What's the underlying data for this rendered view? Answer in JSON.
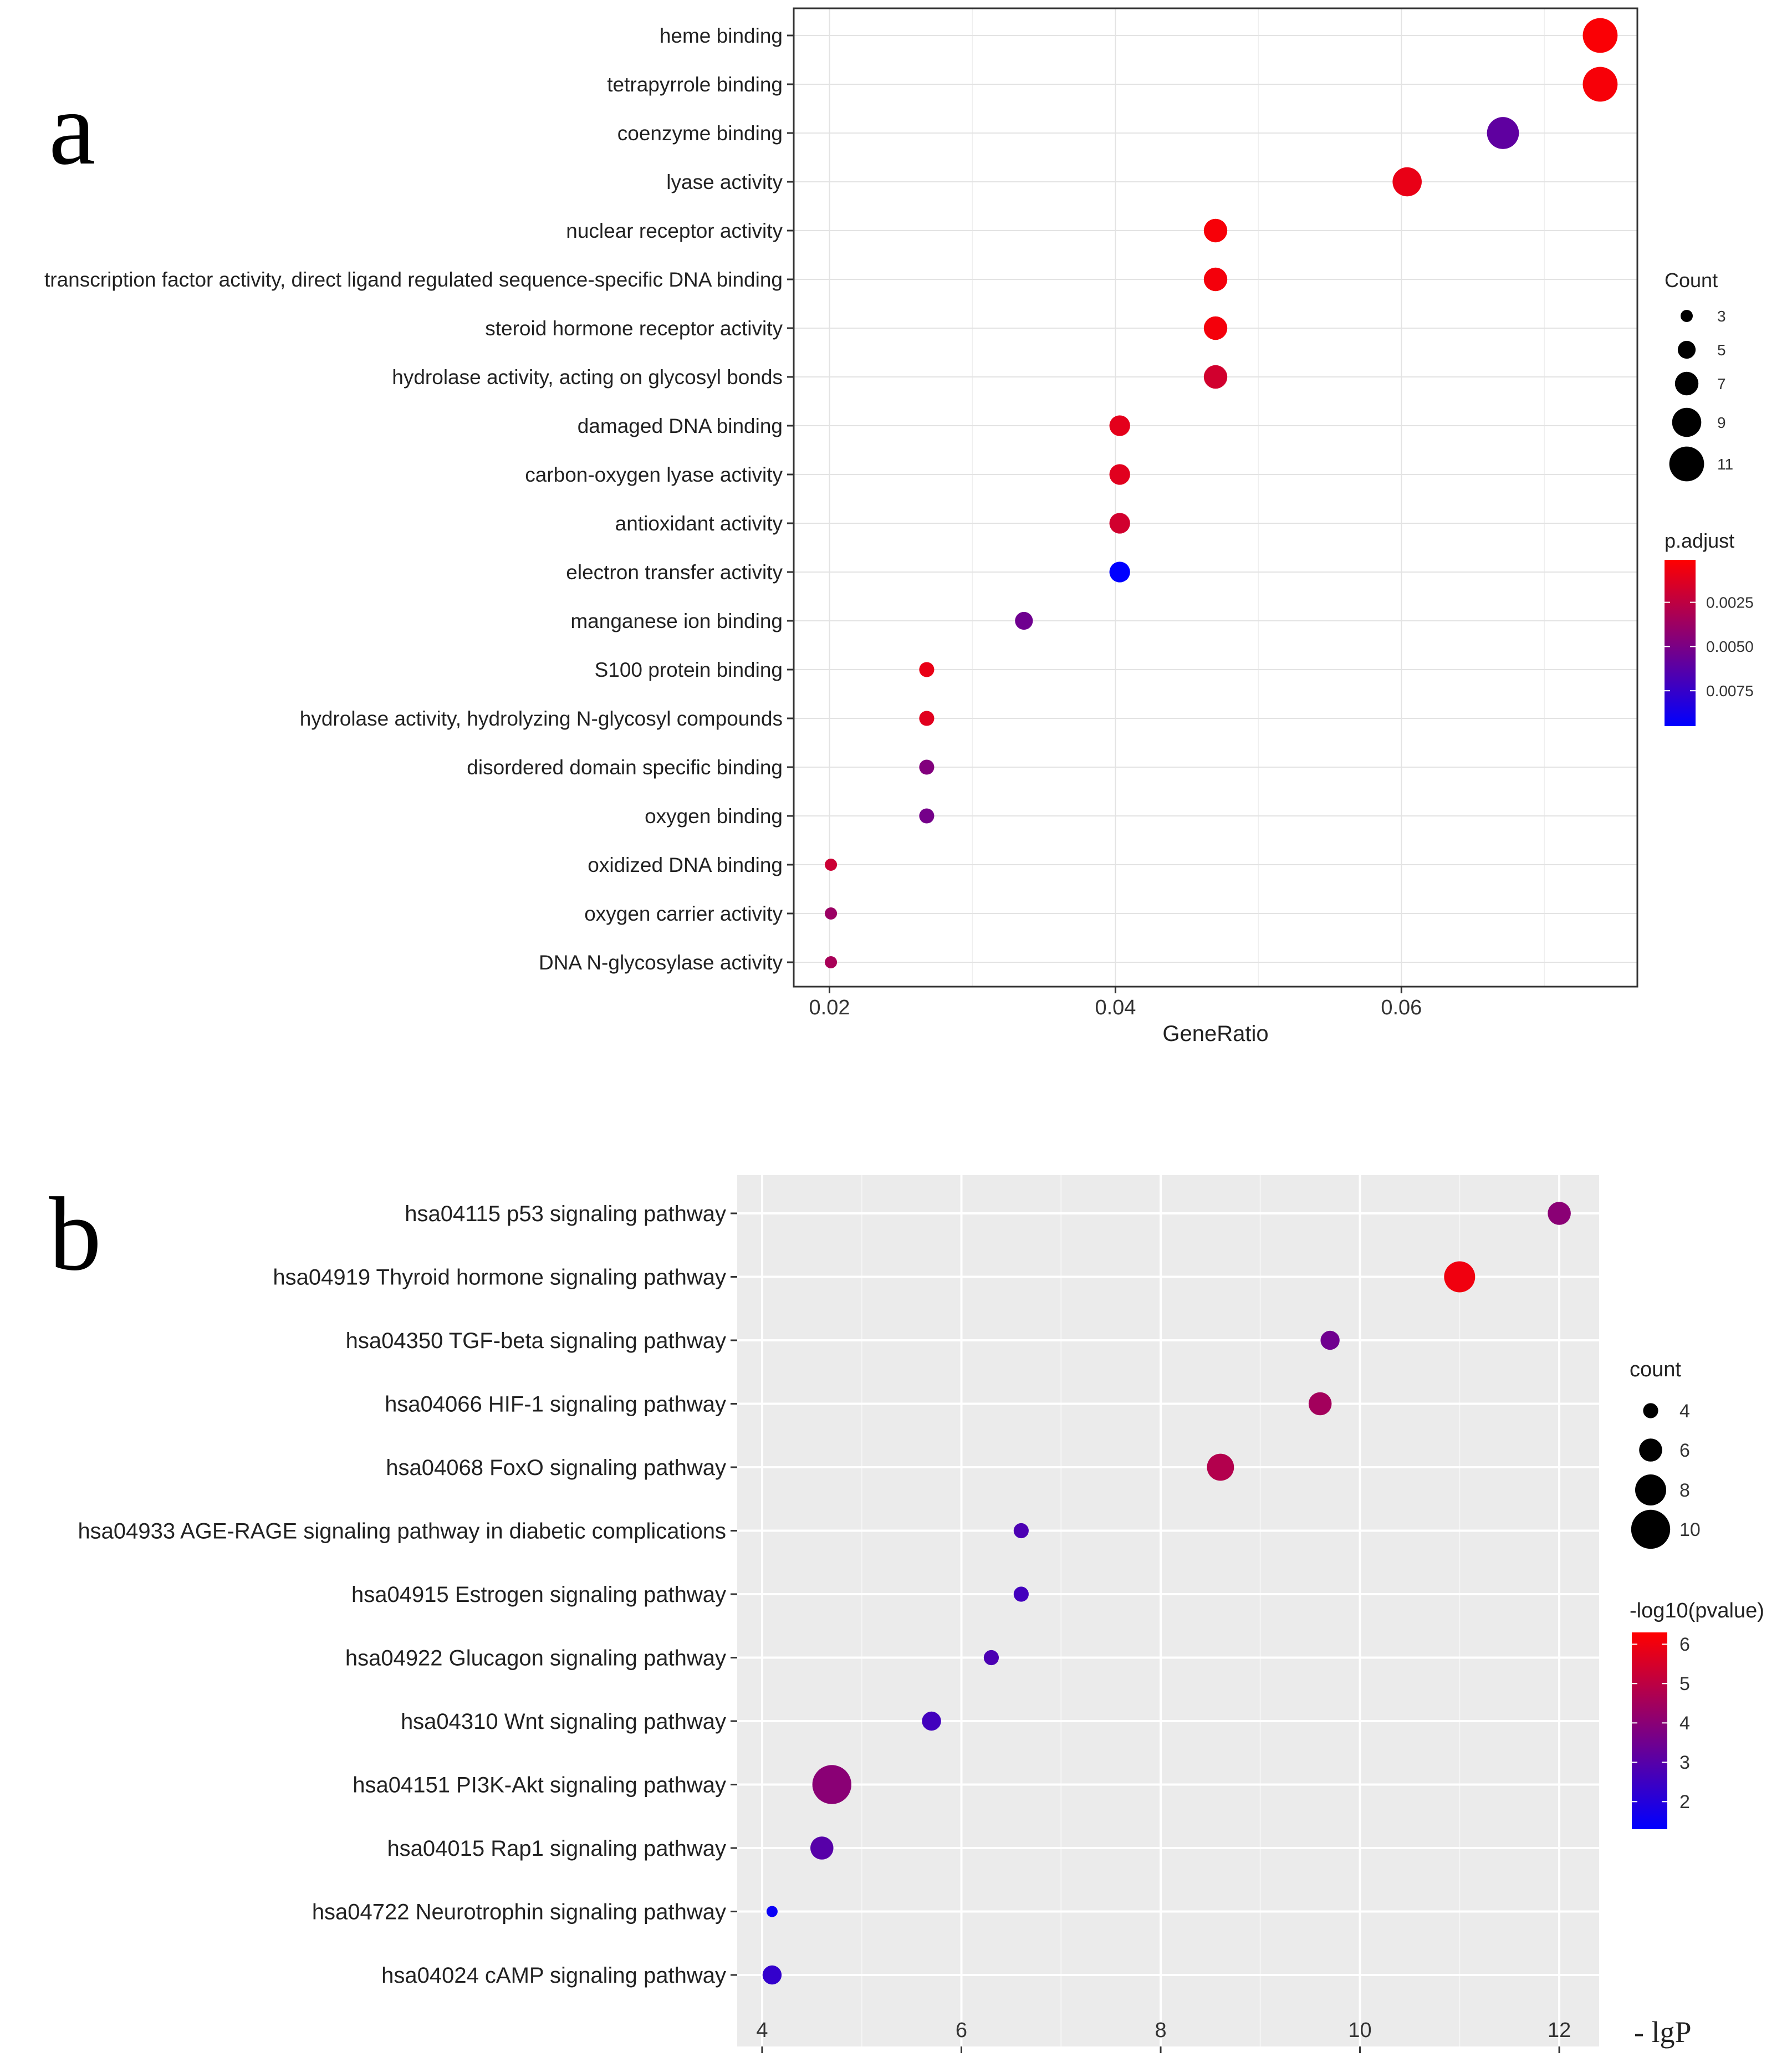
{
  "panels": {
    "a": {
      "letter": "a"
    },
    "b": {
      "letter": "b"
    }
  },
  "chart_data": [
    {
      "id": "a",
      "type": "scatter",
      "subtype": "dot-plot",
      "title": "",
      "xlabel": "GeneRatio",
      "ylabel": "",
      "xlim": [
        0.0175,
        0.0765
      ],
      "xticks": [
        0.02,
        0.04,
        0.06
      ],
      "xtick_labels": [
        "0.02",
        "0.04",
        "0.06"
      ],
      "grid": true,
      "panel_background": "#FFFFFF",
      "categories": [
        "heme binding",
        "tetrapyrrole binding",
        "coenzyme binding",
        "lyase activity",
        "nuclear receptor activity",
        "transcription factor activity, direct ligand regulated sequence-specific DNA binding",
        "steroid hormone receptor activity",
        "hydrolase activity, acting on glycosyl bonds",
        "damaged DNA binding",
        "carbon-oxygen lyase activity",
        "antioxidant activity",
        "electron transfer activity",
        "manganese ion binding",
        "S100 protein binding",
        "hydrolase activity, hydrolyzing N-glycosyl compounds",
        "disordered domain specific binding",
        "oxygen binding",
        "oxidized DNA binding",
        "oxygen carrier activity",
        "DNA N-glycosylase activity"
      ],
      "x": [
        0.0739,
        0.0739,
        0.0671,
        0.0604,
        0.047,
        0.047,
        0.047,
        0.047,
        0.0403,
        0.0403,
        0.0403,
        0.0403,
        0.0336,
        0.0268,
        0.0268,
        0.0268,
        0.0268,
        0.0201,
        0.0201,
        0.0201
      ],
      "count": [
        11,
        11,
        10,
        9,
        7,
        7,
        7,
        7,
        6,
        6,
        6,
        6,
        5,
        4,
        4,
        4,
        4,
        3,
        3,
        3
      ],
      "color_value": [
        0.0003,
        0.0004,
        0.006,
        0.0009,
        0.0004,
        0.0005,
        0.0005,
        0.0018,
        0.0011,
        0.0012,
        0.0018,
        0.0095,
        0.0054,
        0.0009,
        0.0012,
        0.0047,
        0.0052,
        0.002,
        0.0038,
        0.0033
      ],
      "size_legend": {
        "title": "Count",
        "values": [
          3,
          5,
          7,
          9,
          11
        ],
        "labels": [
          "3",
          "5",
          "7",
          "9",
          "11"
        ]
      },
      "color_legend": {
        "title": "p.adjust",
        "range": [
          0.0001,
          0.0095
        ],
        "ticks": [
          0.0025,
          0.005,
          0.0075
        ],
        "tick_labels": [
          "0.0025",
          "0.0050",
          "0.0075"
        ],
        "low_color": "#FF0000",
        "high_color": "#0000FF",
        "reversed": true
      }
    },
    {
      "id": "b",
      "type": "scatter",
      "subtype": "dot-plot",
      "title": "",
      "xlabel": "- lgP",
      "ylabel": "",
      "xlim": [
        3.75,
        12.4
      ],
      "xticks": [
        4,
        6,
        8,
        10,
        12
      ],
      "xtick_labels": [
        "4",
        "6",
        "8",
        "10",
        "12"
      ],
      "grid": true,
      "panel_background": "#EBEBEB",
      "categories": [
        "hsa04115 p53 signaling pathway",
        "hsa04919 Thyroid hormone signaling pathway",
        "hsa04350 TGF-beta signaling pathway",
        "hsa04066 HIF-1 signaling pathway",
        "hsa04068 FoxO signaling pathway",
        "hsa04933 AGE-RAGE signaling pathway in diabetic complications",
        "hsa04915 Estrogen signaling pathway",
        "hsa04922 Glucagon signaling pathway",
        "hsa04310 Wnt signaling pathway",
        "hsa04151 PI3K-Akt signaling pathway",
        "hsa04015 Rap1 signaling pathway",
        "hsa04722 Neurotrophin signaling pathway",
        "hsa04024 cAMP signaling pathway"
      ],
      "x": [
        12.0,
        11.0,
        9.7,
        9.6,
        8.6,
        6.6,
        6.6,
        6.3,
        5.7,
        4.7,
        4.6,
        4.1,
        4.1
      ],
      "count": [
        6,
        8,
        5,
        6,
        7,
        4,
        4,
        4,
        5,
        10,
        6,
        3,
        5
      ],
      "color_value": [
        4.0,
        6.0,
        3.5,
        4.5,
        4.8,
        2.8,
        2.6,
        2.8,
        2.6,
        4.0,
        3.0,
        1.5,
        2.3
      ],
      "size_legend": {
        "title": "count",
        "values": [
          4,
          6,
          8,
          10
        ],
        "labels": [
          "4",
          "6",
          "8",
          "10"
        ]
      },
      "color_legend": {
        "title": "-log10(pvalue)",
        "range": [
          1.3,
          6.3
        ],
        "ticks": [
          2,
          3,
          4,
          5,
          6
        ],
        "tick_labels": [
          "2",
          "3",
          "4",
          "5",
          "6"
        ],
        "low_color": "#0000FF",
        "high_color": "#FF0000",
        "reversed": false
      }
    }
  ]
}
